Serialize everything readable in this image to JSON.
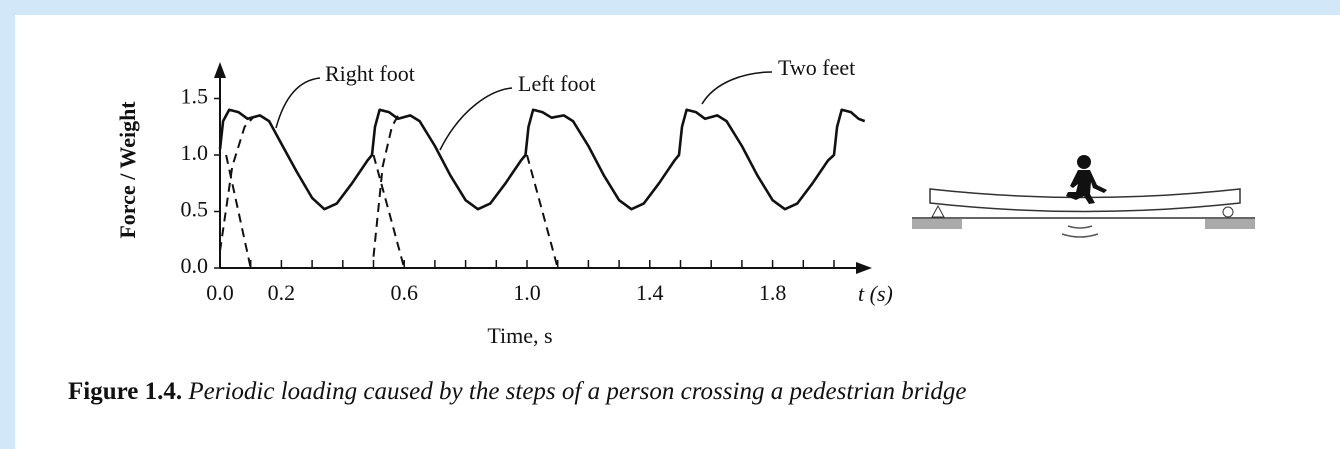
{
  "chart_data": {
    "type": "line",
    "ylabel": "Force / Weight",
    "xlabel": "Time, s",
    "x_axis_end_label": "t (s)",
    "annotations": [
      "Right foot",
      "Left foot",
      "Two feet"
    ],
    "xlim": [
      0,
      2.1
    ],
    "ylim": [
      0,
      1.8
    ],
    "xticks": [
      {
        "value": 0,
        "label": "0.0"
      },
      0.2,
      0.6,
      {
        "value": 1,
        "label": "1.0"
      },
      1.4,
      1.8
    ],
    "xminorticks": [
      0.1,
      0.3,
      0.4,
      0.5,
      0.7,
      0.8,
      0.9,
      1.1,
      1.2,
      1.3,
      1.5,
      1.6,
      1.7,
      1.9,
      2.0
    ],
    "yticks": [
      {
        "value": 0,
        "label": "0.0"
      },
      0.5,
      {
        "value": 1,
        "label": "1.0"
      },
      1.5
    ],
    "series": [
      {
        "color": "#111111",
        "style": "solid",
        "x": [
          0.0,
          0.01,
          0.03,
          0.06,
          0.09,
          0.13,
          0.16,
          0.2,
          0.25,
          0.3,
          0.34,
          0.38,
          0.43,
          0.48,
          0.495,
          0.505,
          0.52,
          0.55,
          0.58,
          0.62,
          0.65,
          0.7,
          0.75,
          0.8,
          0.84,
          0.88,
          0.93,
          0.98,
          0.995,
          1.005,
          1.02,
          1.05,
          1.08,
          1.12,
          1.15,
          1.2,
          1.25,
          1.3,
          1.34,
          1.38,
          1.43,
          1.48,
          1.495,
          1.505,
          1.52,
          1.55,
          1.58,
          1.62,
          1.65,
          1.7,
          1.75,
          1.8,
          1.84,
          1.88,
          1.93,
          1.98,
          2.0,
          2.01,
          2.025,
          2.055,
          2.08,
          2.1
        ],
        "values": [
          1.05,
          1.3,
          1.4,
          1.38,
          1.32,
          1.35,
          1.3,
          1.1,
          0.85,
          0.62,
          0.52,
          0.57,
          0.75,
          0.95,
          1.0,
          1.25,
          1.4,
          1.38,
          1.32,
          1.35,
          1.3,
          1.08,
          0.82,
          0.6,
          0.52,
          0.57,
          0.75,
          0.95,
          1.0,
          1.25,
          1.4,
          1.38,
          1.33,
          1.35,
          1.3,
          1.08,
          0.82,
          0.6,
          0.52,
          0.57,
          0.75,
          0.95,
          1.0,
          1.25,
          1.4,
          1.38,
          1.32,
          1.35,
          1.3,
          1.08,
          0.82,
          0.6,
          0.52,
          0.57,
          0.75,
          0.95,
          1.0,
          1.25,
          1.4,
          1.38,
          1.32,
          1.3
        ]
      },
      {
        "color": "#111111",
        "style": "dashed",
        "x": [
          0.0,
          0.04,
          0.08,
          0.11,
          0.12,
          0.5,
          0.53,
          0.56,
          0.58
        ],
        "values": [
          0.15,
          0.9,
          1.25,
          1.34,
          null,
          0.1,
          0.9,
          1.25,
          1.35
        ]
      },
      {
        "color": "#111111",
        "style": "dashed",
        "x": [
          0.02,
          0.06,
          0.1,
          0.11,
          0.5,
          0.55,
          0.6,
          0.61,
          1.0,
          1.05,
          1.1
        ],
        "values": [
          1.0,
          0.5,
          0.0,
          null,
          1.0,
          0.5,
          0.0,
          null,
          1.0,
          0.5,
          0.0
        ]
      }
    ]
  },
  "caption": {
    "label": "Figure 1.4.",
    "text": "Periodic loading caused by the steps of a person crossing a pedestrian bridge"
  }
}
